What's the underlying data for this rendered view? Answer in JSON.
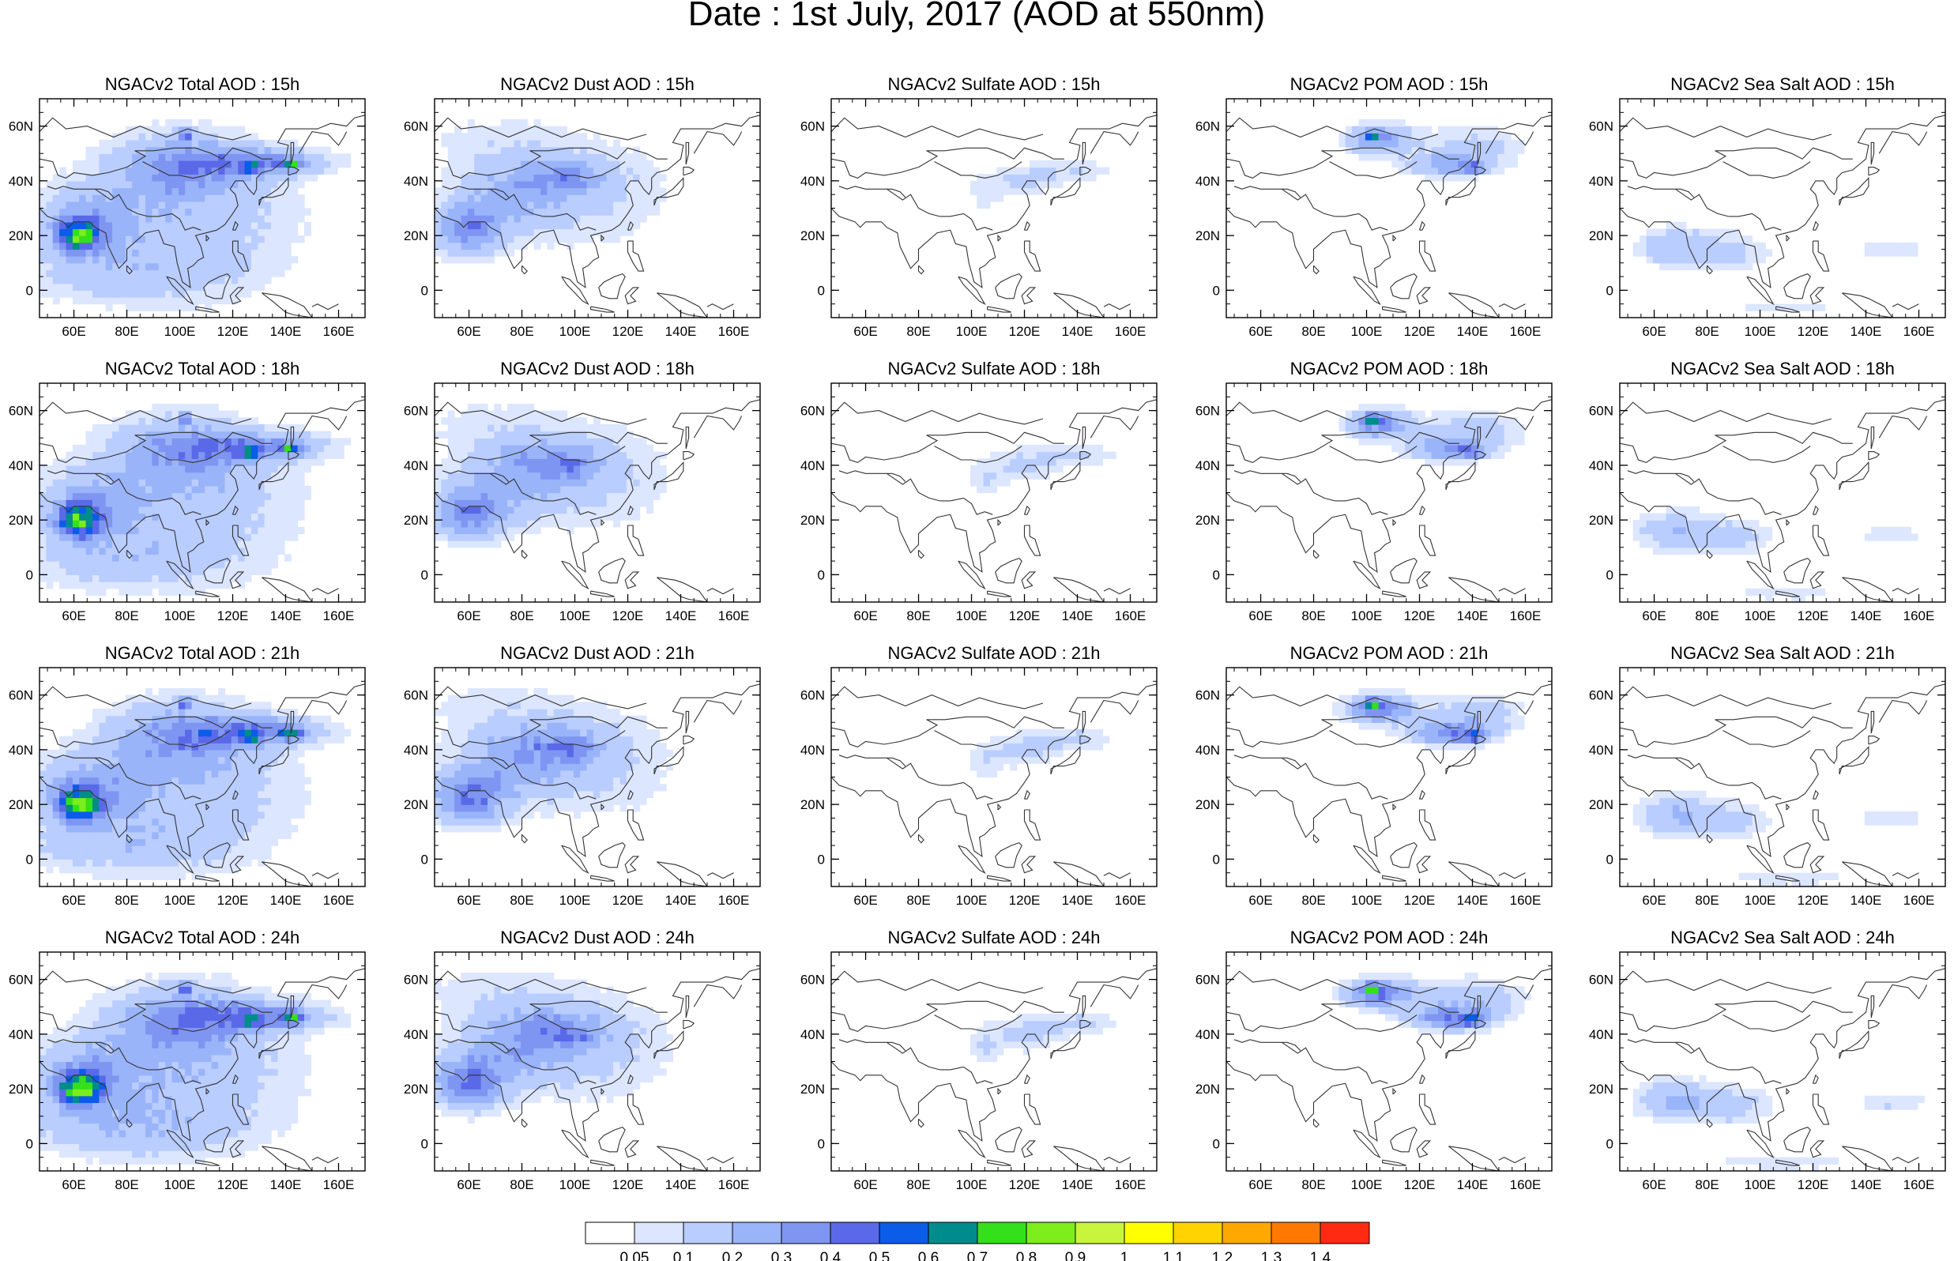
{
  "figure": {
    "title": "Date : 1st July, 2017 (AOD at 550nm)"
  },
  "chart_data": {
    "type": "heatmap",
    "grid": "4x5 small multiples (maps)",
    "x_ticks": [
      "60E",
      "80E",
      "100E",
      "120E",
      "140E",
      "160E"
    ],
    "x_tick_values": [
      60,
      80,
      100,
      120,
      140,
      160
    ],
    "y_ticks": [
      "60N",
      "40N",
      "20N",
      "0"
    ],
    "y_tick_values": [
      60,
      40,
      20,
      0
    ],
    "xlim": [
      47,
      170
    ],
    "ylim": [
      -10,
      70
    ],
    "colorbar": {
      "labels": [
        "0.05",
        "0.1",
        "0.2",
        "0.3",
        "0.4",
        "0.5",
        "0.6",
        "0.7",
        "0.8",
        "0.9",
        "1",
        "1.1",
        "1.2",
        "1.3",
        "1.4"
      ],
      "colors": [
        "#ffffff",
        "#dce6ff",
        "#b9cdff",
        "#9ab4fa",
        "#7f95f2",
        "#5a69e8",
        "#0b5ce8",
        "#008c8c",
        "#33e01a",
        "#7ded1c",
        "#c8f53c",
        "#ffff00",
        "#ffd200",
        "#ffa800",
        "#ff7800",
        "#ff2a12"
      ]
    },
    "panels": [
      {
        "title": "NGACv2 Total AOD : 15h",
        "species": "total",
        "level": 1.0
      },
      {
        "title": "NGACv2 Dust AOD : 15h",
        "species": "dust",
        "level": 0.9
      },
      {
        "title": "NGACv2 Sulfate AOD : 15h",
        "species": "sulfate",
        "level": 0.9
      },
      {
        "title": "NGACv2 POM AOD : 15h",
        "species": "pom",
        "level": 0.85
      },
      {
        "title": "NGACv2 Sea Salt AOD : 15h",
        "species": "seasalt",
        "level": 0.85
      },
      {
        "title": "NGACv2 Total AOD : 18h",
        "species": "total",
        "level": 1.0
      },
      {
        "title": "NGACv2 Dust AOD : 18h",
        "species": "dust",
        "level": 0.95
      },
      {
        "title": "NGACv2 Sulfate AOD : 18h",
        "species": "sulfate",
        "level": 0.95
      },
      {
        "title": "NGACv2 POM AOD : 18h",
        "species": "pom",
        "level": 0.95
      },
      {
        "title": "NGACv2 Sea Salt AOD : 18h",
        "species": "seasalt",
        "level": 0.9
      },
      {
        "title": "NGACv2 Total AOD : 21h",
        "species": "total",
        "level": 1.05
      },
      {
        "title": "NGACv2 Dust AOD : 21h",
        "species": "dust",
        "level": 1.0
      },
      {
        "title": "NGACv2 Sulfate AOD : 21h",
        "species": "sulfate",
        "level": 1.0
      },
      {
        "title": "NGACv2 POM AOD : 21h",
        "species": "pom",
        "level": 1.05
      },
      {
        "title": "NGACv2 Sea Salt AOD : 21h",
        "species": "seasalt",
        "level": 0.95
      },
      {
        "title": "NGACv2 Total AOD : 24h",
        "species": "total",
        "level": 1.1
      },
      {
        "title": "NGACv2 Dust AOD : 24h",
        "species": "dust",
        "level": 1.05
      },
      {
        "title": "NGACv2 Sulfate AOD : 24h",
        "species": "sulfate",
        "level": 1.05
      },
      {
        "title": "NGACv2 POM AOD : 24h",
        "species": "pom",
        "level": 1.15
      },
      {
        "title": "NGACv2 Sea Salt  AOD : 24h",
        "species": "seasalt",
        "level": 1.0
      }
    ]
  }
}
